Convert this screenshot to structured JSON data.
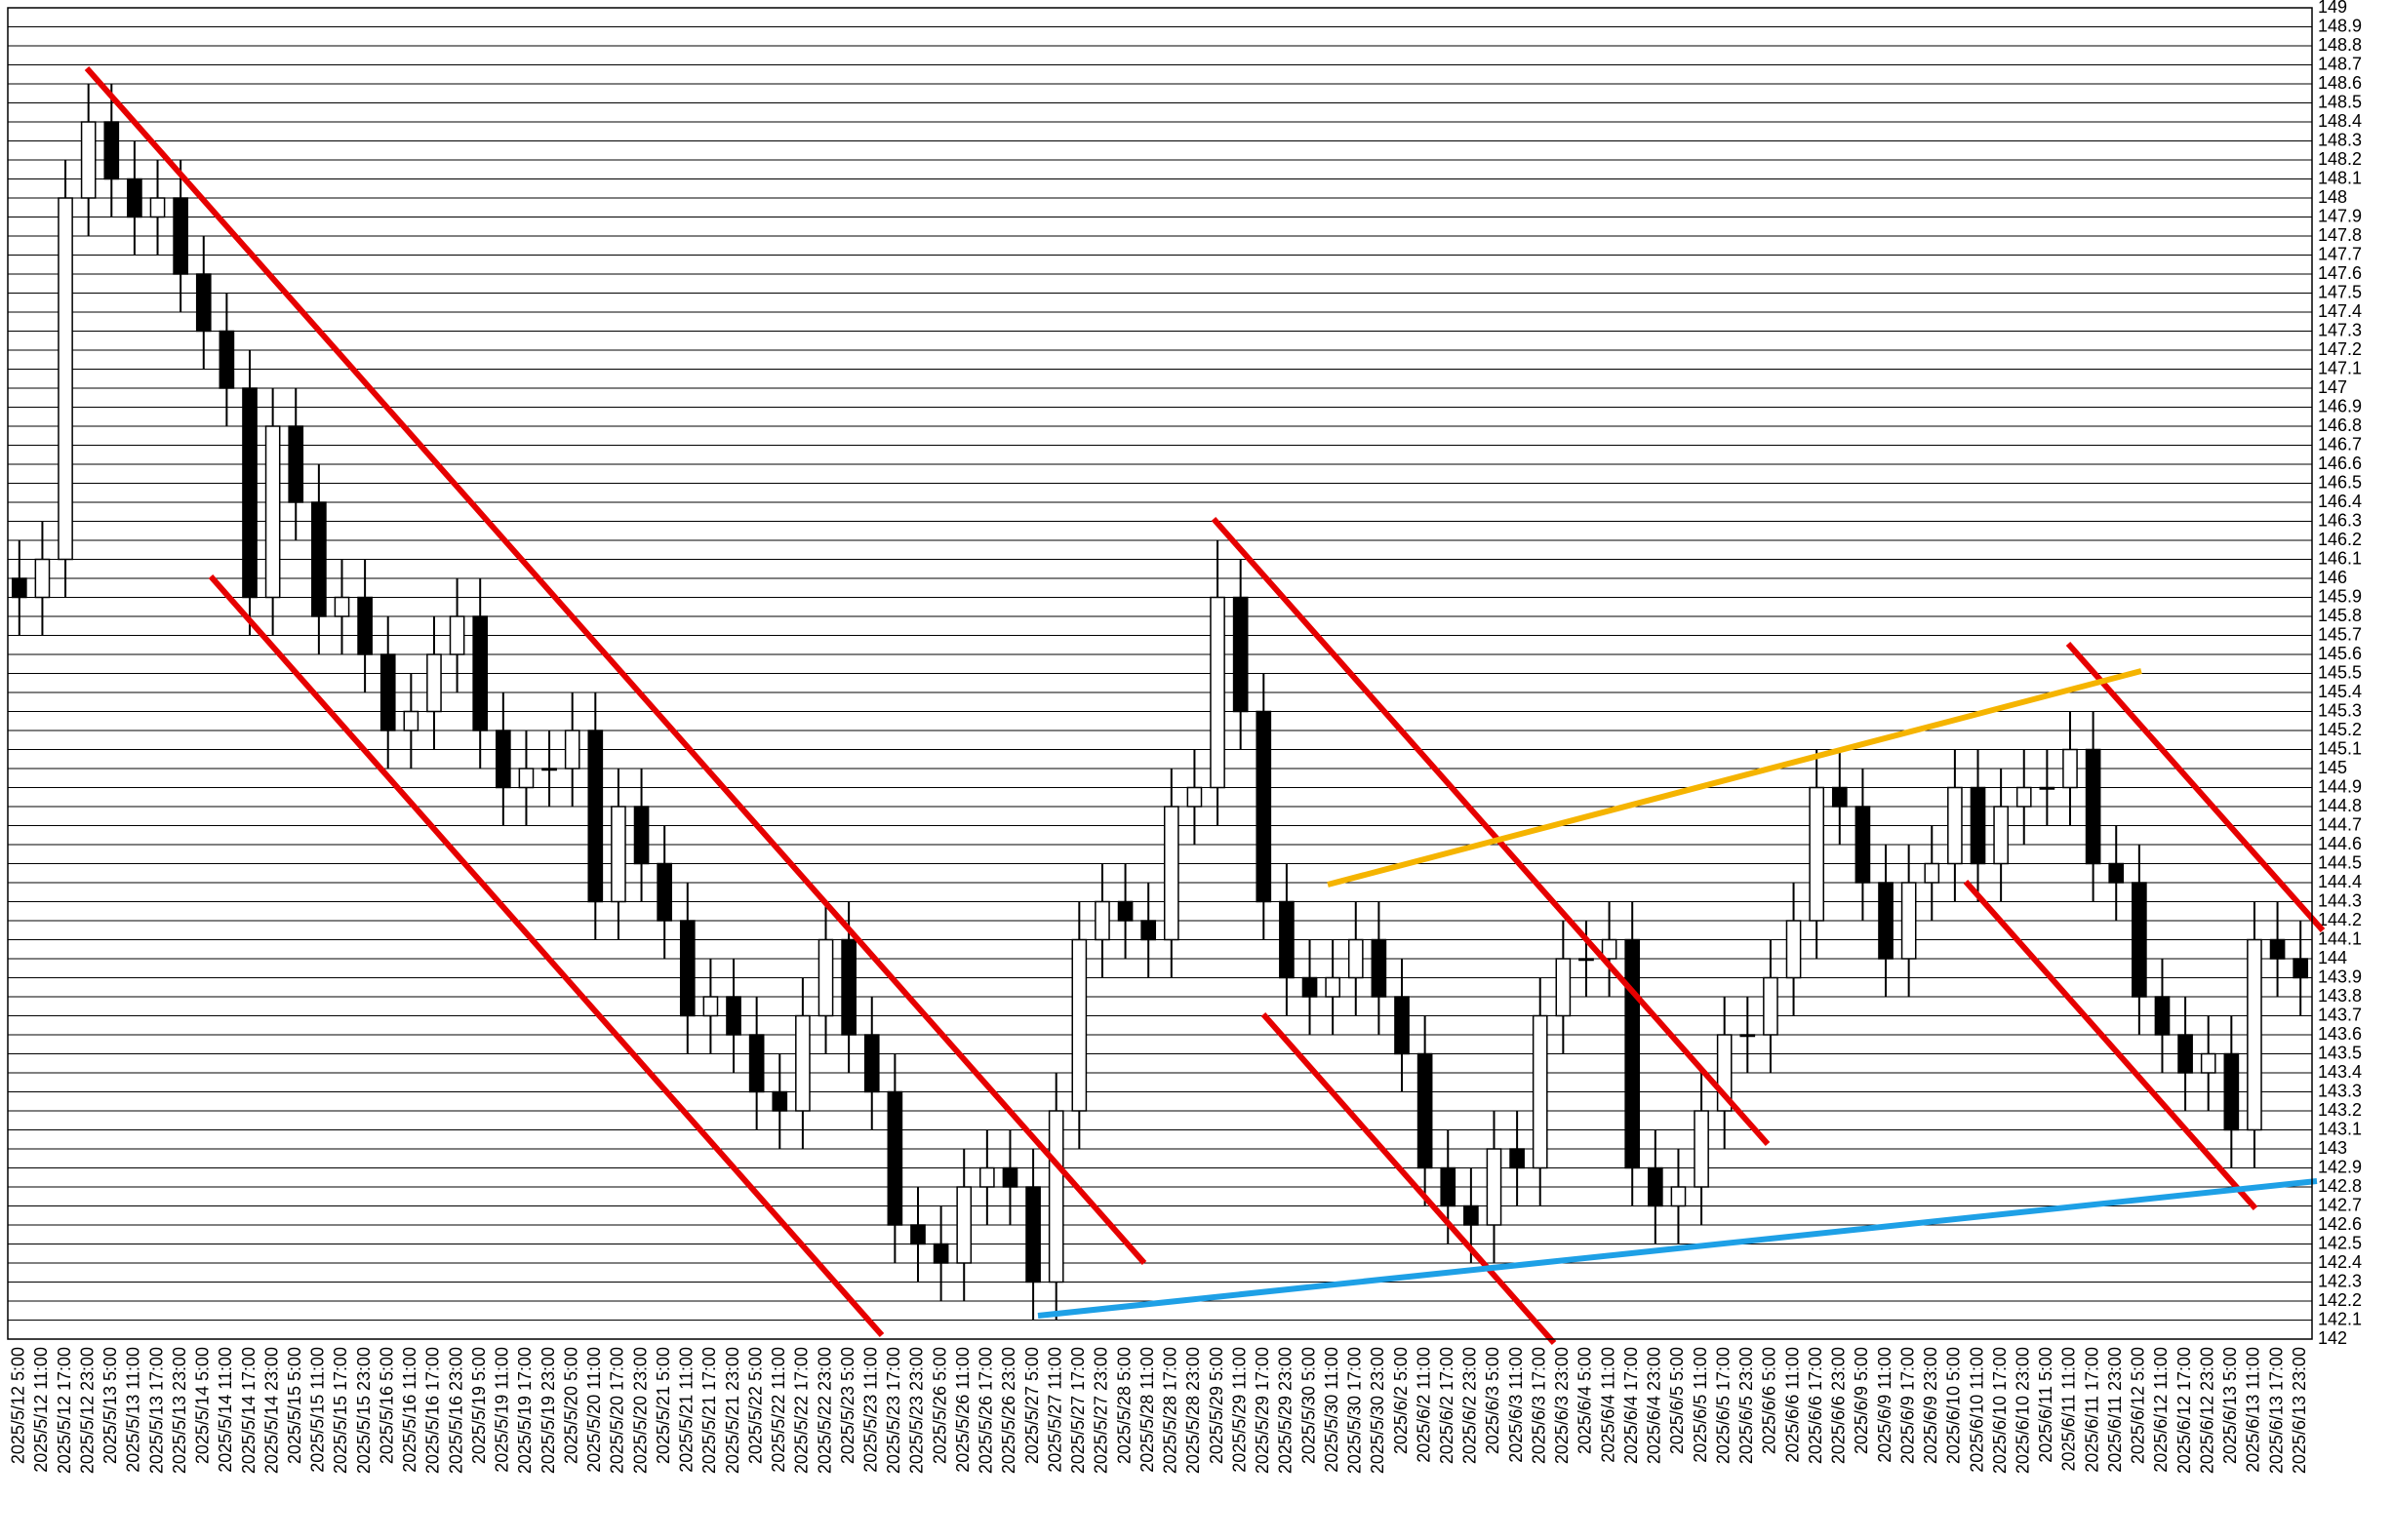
{
  "chart_data": {
    "type": "candlestick",
    "x": [
      "2025/5/12 5:00",
      "2025/5/12 11:00",
      "2025/5/12 17:00",
      "2025/5/12 23:00",
      "2025/5/13 5:00",
      "2025/5/13 11:00",
      "2025/5/13 17:00",
      "2025/5/13 23:00",
      "2025/5/14 5:00",
      "2025/5/14 11:00",
      "2025/5/14 17:00",
      "2025/5/14 23:00",
      "2025/5/15 5:00",
      "2025/5/15 11:00",
      "2025/5/15 17:00",
      "2025/5/15 23:00",
      "2025/5/16 5:00",
      "2025/5/16 11:00",
      "2025/5/16 17:00",
      "2025/5/16 23:00",
      "2025/5/19 5:00",
      "2025/5/19 11:00",
      "2025/5/19 17:00",
      "2025/5/19 23:00",
      "2025/5/20 5:00",
      "2025/5/20 11:00",
      "2025/5/20 17:00",
      "2025/5/20 23:00",
      "2025/5/21 5:00",
      "2025/5/21 11:00",
      "2025/5/21 17:00",
      "2025/5/21 23:00",
      "2025/5/22 5:00",
      "2025/5/22 11:00",
      "2025/5/22 17:00",
      "2025/5/22 23:00",
      "2025/5/23 5:00",
      "2025/5/23 11:00",
      "2025/5/23 17:00",
      "2025/5/23 23:00",
      "2025/5/26 5:00",
      "2025/5/26 11:00",
      "2025/5/26 17:00",
      "2025/5/26 23:00",
      "2025/5/27 5:00",
      "2025/5/27 11:00",
      "2025/5/27 17:00",
      "2025/5/27 23:00",
      "2025/5/28 5:00",
      "2025/5/28 11:00",
      "2025/5/28 17:00",
      "2025/5/28 23:00",
      "2025/5/29 5:00",
      "2025/5/29 11:00",
      "2025/5/29 17:00",
      "2025/5/29 23:00",
      "2025/5/30 5:00",
      "2025/5/30 11:00",
      "2025/5/30 17:00",
      "2025/5/30 23:00",
      "2025/6/2 5:00",
      "2025/6/2 11:00",
      "2025/6/2 17:00",
      "2025/6/2 23:00",
      "2025/6/3 5:00",
      "2025/6/3 11:00",
      "2025/6/3 17:00",
      "2025/6/3 23:00",
      "2025/6/4 5:00",
      "2025/6/4 11:00",
      "2025/6/4 17:00",
      "2025/6/4 23:00",
      "2025/6/5 5:00",
      "2025/6/5 11:00",
      "2025/6/5 17:00",
      "2025/6/5 23:00",
      "2025/6/6 5:00",
      "2025/6/6 11:00",
      "2025/6/6 17:00",
      "2025/6/6 23:00",
      "2025/6/9 5:00",
      "2025/6/9 11:00",
      "2025/6/9 17:00",
      "2025/6/9 23:00",
      "2025/6/10 5:00",
      "2025/6/10 11:00",
      "2025/6/10 17:00",
      "2025/6/10 23:00",
      "2025/6/11 5:00",
      "2025/6/11 11:00",
      "2025/6/11 17:00",
      "2025/6/11 23:00",
      "2025/6/12 5:00",
      "2025/6/12 11:00",
      "2025/6/12 17:00",
      "2025/6/12 23:00",
      "2025/6/13 5:00",
      "2025/6/13 11:00",
      "2025/6/13 17:00",
      "2025/6/13 23:00"
    ],
    "open": [
      146.0,
      145.9,
      146.1,
      148.0,
      148.4,
      148.1,
      147.9,
      148.0,
      147.6,
      147.3,
      147.0,
      145.9,
      146.8,
      146.4,
      145.8,
      145.9,
      145.6,
      145.2,
      145.3,
      145.6,
      145.8,
      145.2,
      144.9,
      145.0,
      145.0,
      145.2,
      144.3,
      144.8,
      144.5,
      144.2,
      143.7,
      143.8,
      143.6,
      143.3,
      143.2,
      143.7,
      144.1,
      143.6,
      143.3,
      142.6,
      142.5,
      142.4,
      142.8,
      142.9,
      142.8,
      142.3,
      143.2,
      144.1,
      144.3,
      144.2,
      144.1,
      144.8,
      144.9,
      145.9,
      145.3,
      144.3,
      143.9,
      143.8,
      143.9,
      144.1,
      143.8,
      143.5,
      142.9,
      142.7,
      142.6,
      143.0,
      142.9,
      143.7,
      144.0,
      144.0,
      144.1,
      142.9,
      142.7,
      142.8,
      143.2,
      143.6,
      143.6,
      143.9,
      144.2,
      144.9,
      144.8,
      144.4,
      144.0,
      144.4,
      144.5,
      144.9,
      144.5,
      144.8,
      144.9,
      144.9,
      145.1,
      144.5,
      144.4,
      143.8,
      143.6,
      143.4,
      143.5,
      143.1,
      144.1,
      144.0
    ],
    "high": [
      146.2,
      146.3,
      148.2,
      148.6,
      148.6,
      148.3,
      148.2,
      148.2,
      147.8,
      147.5,
      147.2,
      147.0,
      147.0,
      146.6,
      146.1,
      146.1,
      145.8,
      145.5,
      145.8,
      146.0,
      146.0,
      145.4,
      145.2,
      145.2,
      145.4,
      145.4,
      145.0,
      145.0,
      144.7,
      144.4,
      144.0,
      144.0,
      143.8,
      143.5,
      143.9,
      144.3,
      144.3,
      143.8,
      143.5,
      142.8,
      142.7,
      143.0,
      143.1,
      143.1,
      143.0,
      143.4,
      144.3,
      144.5,
      144.5,
      144.4,
      145.0,
      145.1,
      146.2,
      146.1,
      145.5,
      144.5,
      144.1,
      144.1,
      144.3,
      144.3,
      144.0,
      143.7,
      143.1,
      142.9,
      143.2,
      143.2,
      143.9,
      144.2,
      144.2,
      144.3,
      144.3,
      143.1,
      143.0,
      143.4,
      143.8,
      143.8,
      144.1,
      144.4,
      145.1,
      145.1,
      145.0,
      144.6,
      144.6,
      144.7,
      145.1,
      145.1,
      145.0,
      145.1,
      145.1,
      145.3,
      145.3,
      144.7,
      144.6,
      144.0,
      143.8,
      143.7,
      143.7,
      144.3,
      144.3,
      144.2
    ],
    "low": [
      145.7,
      145.7,
      145.9,
      147.8,
      147.9,
      147.7,
      147.7,
      147.4,
      147.1,
      146.8,
      145.7,
      145.7,
      146.2,
      145.6,
      145.6,
      145.4,
      145.0,
      145.0,
      145.1,
      145.4,
      145.0,
      144.7,
      144.7,
      144.8,
      144.8,
      144.1,
      144.1,
      144.3,
      144.0,
      143.5,
      143.5,
      143.4,
      143.1,
      143.0,
      143.0,
      143.5,
      143.4,
      143.1,
      142.4,
      142.3,
      142.2,
      142.2,
      142.6,
      142.6,
      142.1,
      142.1,
      143.0,
      143.9,
      144.0,
      143.9,
      143.9,
      144.6,
      144.7,
      145.1,
      144.1,
      143.7,
      143.6,
      143.6,
      143.7,
      143.6,
      143.3,
      142.7,
      142.5,
      142.4,
      142.4,
      142.7,
      142.7,
      143.5,
      143.8,
      143.8,
      142.7,
      142.5,
      142.5,
      142.6,
      143.0,
      143.4,
      143.4,
      143.7,
      144.0,
      144.6,
      144.2,
      143.8,
      143.8,
      144.2,
      144.3,
      144.3,
      144.3,
      144.6,
      144.7,
      144.7,
      144.3,
      144.2,
      143.6,
      143.4,
      143.2,
      143.2,
      142.9,
      142.9,
      143.8,
      143.7
    ],
    "close": [
      145.9,
      146.1,
      148.0,
      148.4,
      148.1,
      147.9,
      148.0,
      147.6,
      147.3,
      147.0,
      145.9,
      146.8,
      146.4,
      145.8,
      145.9,
      145.6,
      145.2,
      145.3,
      145.6,
      145.8,
      145.2,
      144.9,
      145.0,
      145.0,
      145.2,
      144.3,
      144.8,
      144.5,
      144.2,
      143.7,
      143.8,
      143.6,
      143.3,
      143.2,
      143.7,
      144.1,
      143.6,
      143.3,
      142.6,
      142.5,
      142.4,
      142.8,
      142.9,
      142.8,
      142.3,
      143.2,
      144.1,
      144.3,
      144.2,
      144.1,
      144.8,
      144.9,
      145.9,
      145.3,
      144.3,
      143.9,
      143.8,
      143.9,
      144.1,
      143.8,
      143.5,
      142.9,
      142.7,
      142.6,
      143.0,
      142.9,
      143.7,
      144.0,
      144.0,
      144.1,
      142.9,
      142.7,
      142.8,
      143.2,
      143.6,
      143.6,
      143.9,
      144.2,
      144.9,
      144.8,
      144.4,
      144.0,
      144.4,
      144.5,
      144.9,
      144.5,
      144.8,
      144.9,
      144.9,
      145.1,
      144.5,
      144.4,
      143.8,
      143.6,
      143.4,
      143.5,
      143.1,
      144.1,
      144.0,
      143.9
    ],
    "up_color": "#ffffff",
    "down_color": "#000000",
    "ylim": [
      142,
      149
    ],
    "yticks": [
      142,
      142.1,
      142.2,
      142.3,
      142.4,
      142.5,
      142.6,
      142.7,
      142.8,
      142.9,
      143,
      143.1,
      143.2,
      143.3,
      143.4,
      143.5,
      143.6,
      143.7,
      143.8,
      143.9,
      144,
      144.1,
      144.2,
      144.3,
      144.4,
      144.5,
      144.6,
      144.7,
      144.8,
      144.9,
      145,
      145.1,
      145.2,
      145.3,
      145.4,
      145.5,
      145.6,
      145.7,
      145.8,
      145.9,
      146,
      146.1,
      146.2,
      146.3,
      146.4,
      146.5,
      146.6,
      146.7,
      146.8,
      146.9,
      147,
      147.1,
      147.2,
      147.3,
      147.4,
      147.5,
      147.6,
      147.7,
      147.8,
      147.9,
      148,
      148.1,
      148.2,
      148.3,
      148.4,
      148.5,
      148.6,
      148.7,
      148.8,
      148.9,
      149
    ],
    "grid": true
  }
}
